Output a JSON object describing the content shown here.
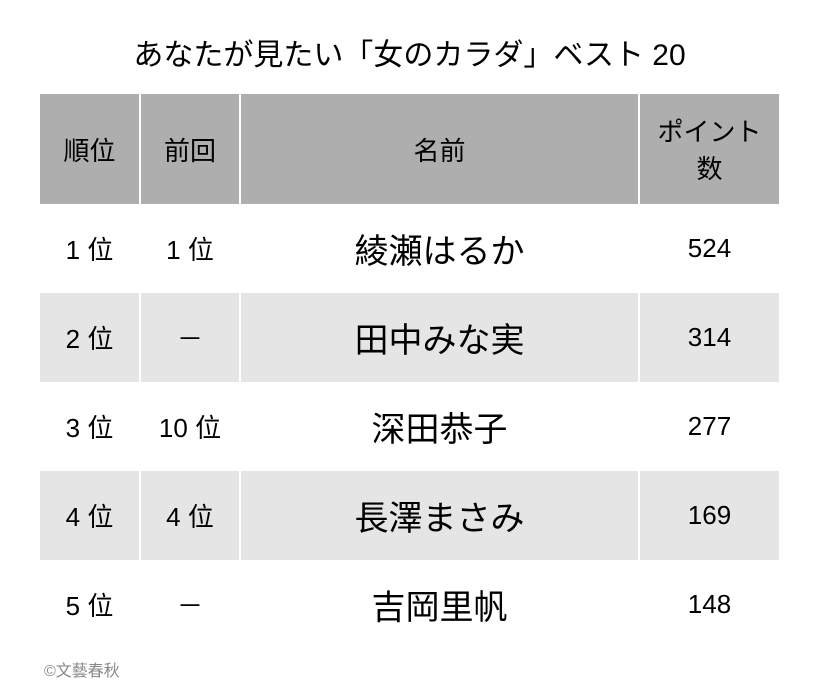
{
  "title": "あなたが見たい「女のカラダ」ベスト 20",
  "columns": {
    "rank": "順位",
    "prev": "前回",
    "name": "名前",
    "points": "ポイント数"
  },
  "rows": [
    {
      "rank": "1 位",
      "prev": "1 位",
      "name": "綾瀬はるか",
      "points": "524"
    },
    {
      "rank": "2 位",
      "prev": "－",
      "name": "田中みな実",
      "points": "314"
    },
    {
      "rank": "3 位",
      "prev": "10 位",
      "name": "深田恭子",
      "points": "277"
    },
    {
      "rank": "4 位",
      "prev": "4 位",
      "name": "長澤まさみ",
      "points": "169"
    },
    {
      "rank": "5 位",
      "prev": "－",
      "name": "吉岡里帆",
      "points": "148"
    }
  ],
  "credit": "©文藝春秋",
  "styling": {
    "background_color": "#ffffff",
    "header_bg": "#aeaeae",
    "row_even_bg": "#e5e5e5",
    "row_odd_bg": "#ffffff",
    "title_fontsize": 30,
    "header_fontsize": 26,
    "rank_fontsize": 26,
    "name_fontsize": 34,
    "points_fontsize": 26,
    "credit_fontsize": 16,
    "credit_color": "#888888",
    "border_color": "#ffffff",
    "col_widths": {
      "rank": 100,
      "prev": 100,
      "points": 140
    }
  }
}
